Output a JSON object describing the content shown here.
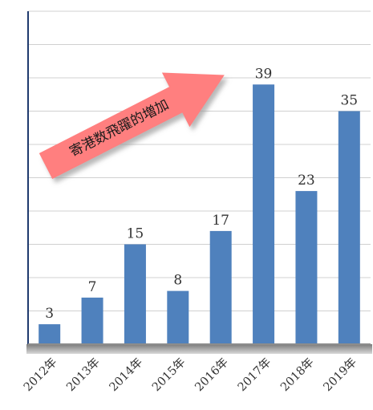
{
  "chart_data": {
    "type": "bar",
    "categories": [
      "2012年",
      "2013年",
      "2014年",
      "2015年",
      "2016年",
      "2017年",
      "2018年",
      "2019年"
    ],
    "values": [
      3,
      7,
      15,
      8,
      17,
      39,
      23,
      35
    ],
    "title": "",
    "xlabel": "",
    "ylabel": "",
    "ylim": [
      0,
      50
    ],
    "grid": true,
    "legend": "none",
    "annotation": "寄港数飛躍的増加"
  },
  "colors": {
    "bar": "#4f81bd",
    "grid": "#d0d0d0",
    "axis": "#1f3a6e",
    "baseline_shadow": "#8c8c8c",
    "arrow": "#ff7f7f",
    "arrow_shadow": "#bdbdbd",
    "label_text": "#333333"
  }
}
